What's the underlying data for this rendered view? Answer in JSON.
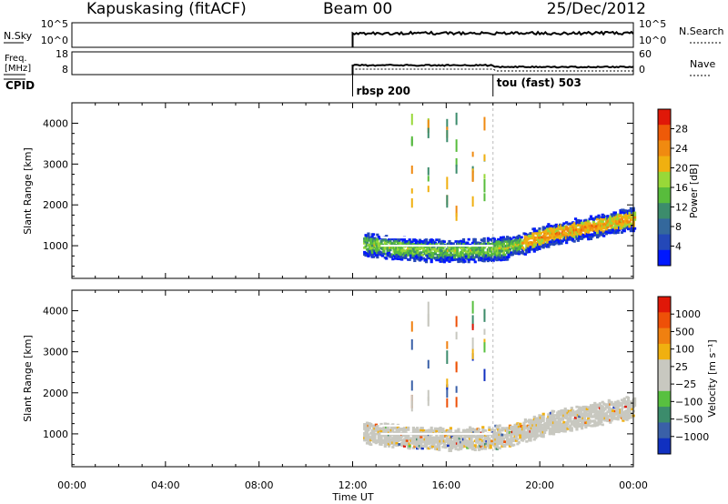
{
  "header": {
    "station": "Kapuskasing (fitACF)",
    "beam": "Beam 00",
    "date": "25/Dec/2012"
  },
  "info_panels": {
    "nsky_label": "N.Sky",
    "nsearch_label": "N.Search",
    "freq_label_1": "Freq.",
    "freq_label_2": "[MHz]",
    "nave_label": "Nave",
    "cpid_label": "CPID",
    "left_ticks_top": [
      "10^5",
      "10^0"
    ],
    "right_ticks_top": [
      "10^5",
      "10^0"
    ],
    "left_ticks_freq": [
      "18",
      "8"
    ],
    "right_ticks_nave": [
      "60",
      "0"
    ],
    "cpid_entries": [
      {
        "label": "rbsp 200",
        "time_h": 12.0
      },
      {
        "label": "tou (fast) 503",
        "time_h": 18.0
      }
    ]
  },
  "chart_data": [
    {
      "type": "heatmap",
      "name": "power",
      "xlabel": "Time UT",
      "ylabel": "Slant Range [km]",
      "x_ticks": [
        "00:00",
        "04:00",
        "08:00",
        "12:00",
        "16:00",
        "20:00",
        "00:00"
      ],
      "xlim_hours": [
        0,
        24
      ],
      "ylim": [
        200,
        4500
      ],
      "y_ticks": [
        1000,
        2000,
        3000,
        4000
      ],
      "colorbar_label": "Power [dB]",
      "colorbar_ticks": [
        "28",
        "24",
        "20",
        "16",
        "12",
        "8",
        "4"
      ],
      "colors": [
        "#0018ff",
        "#2448b8",
        "#34689c",
        "#3c8c6c",
        "#58bc3c",
        "#98d838",
        "#f0b010",
        "#f08a10",
        "#ee5a08",
        "#e01808"
      ],
      "data_start_h": 12.0
    },
    {
      "type": "heatmap",
      "name": "velocity",
      "xlabel": "Time UT",
      "ylabel": "Slant Range [km]",
      "x_ticks": [
        "00:00",
        "04:00",
        "08:00",
        "12:00",
        "16:00",
        "20:00",
        "00:00"
      ],
      "xlim_hours": [
        0,
        24
      ],
      "ylim": [
        200,
        4500
      ],
      "y_ticks": [
        1000,
        2000,
        3000,
        4000
      ],
      "colorbar_label": "Velocity [m s⁻¹]",
      "colorbar_ticks": [
        "1000",
        "500",
        "100",
        "25",
        "−25",
        "−100",
        "−500",
        "−1000"
      ],
      "colors": [
        "#1030c0",
        "#3a60a8",
        "#3c8c6c",
        "#58c040",
        "#c8c8c0",
        "#c8c8c0",
        "#f0b010",
        "#f08010",
        "#ee5008",
        "#e01808"
      ],
      "data_start_h": 12.0
    }
  ],
  "time_axis_label": "Time UT"
}
